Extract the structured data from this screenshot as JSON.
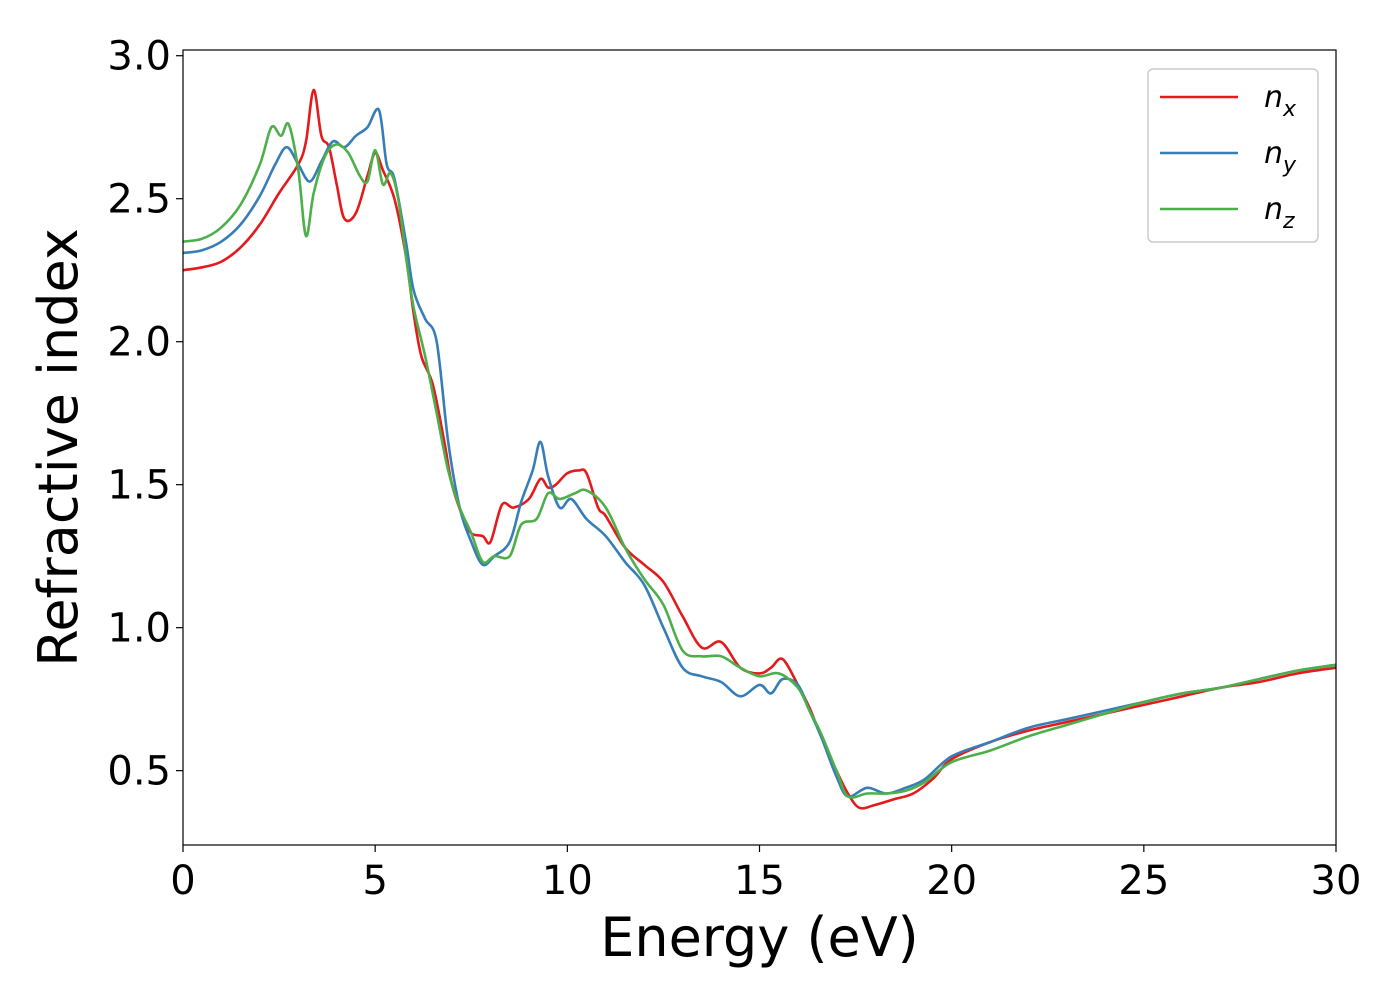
{
  "chart_data": {
    "type": "line",
    "title": "",
    "xlabel": "Energy (eV)",
    "ylabel": "Refractive index",
    "xlim": [
      0,
      30
    ],
    "ylim": [
      0.24,
      3.02
    ],
    "xticks": [
      0,
      5,
      10,
      15,
      20,
      25,
      30
    ],
    "xtick_labels": [
      "0",
      "5",
      "10",
      "15",
      "20",
      "25",
      "30"
    ],
    "yticks": [
      0.5,
      1.0,
      1.5,
      2.0,
      2.5,
      3.0
    ],
    "ytick_labels": [
      "0.5",
      "1.0",
      "1.5",
      "2.0",
      "2.5",
      "3.0"
    ],
    "grid": false,
    "legend_position": "top-right",
    "series": [
      {
        "name": "n",
        "subscript": "x",
        "color": "#e41a1c",
        "x": [
          0,
          0.5,
          1,
          1.5,
          2,
          2.5,
          3,
          3.2,
          3.4,
          3.6,
          3.8,
          4,
          4.2,
          4.5,
          4.8,
          5,
          5.2,
          5.5,
          5.8,
          6,
          6.2,
          6.5,
          6.8,
          7,
          7.3,
          7.5,
          7.8,
          8,
          8.3,
          8.6,
          9,
          9.3,
          9.5,
          9.7,
          10,
          10.3,
          10.5,
          10.8,
          11,
          11.5,
          12,
          12.5,
          13,
          13.5,
          14,
          14.5,
          15,
          15.3,
          15.6,
          16,
          16.3,
          16.6,
          17,
          17.3,
          17.6,
          18,
          18.5,
          19,
          19.5,
          20,
          21,
          22,
          23,
          24,
          25,
          26,
          27,
          28,
          29,
          30
        ],
        "y": [
          2.25,
          2.26,
          2.28,
          2.33,
          2.41,
          2.52,
          2.62,
          2.7,
          2.88,
          2.72,
          2.68,
          2.55,
          2.43,
          2.45,
          2.58,
          2.66,
          2.6,
          2.5,
          2.3,
          2.1,
          1.95,
          1.85,
          1.65,
          1.5,
          1.38,
          1.33,
          1.32,
          1.3,
          1.43,
          1.42,
          1.45,
          1.52,
          1.49,
          1.5,
          1.54,
          1.55,
          1.54,
          1.42,
          1.39,
          1.28,
          1.22,
          1.16,
          1.04,
          0.93,
          0.95,
          0.86,
          0.84,
          0.86,
          0.89,
          0.8,
          0.72,
          0.62,
          0.5,
          0.42,
          0.37,
          0.38,
          0.4,
          0.42,
          0.47,
          0.54,
          0.6,
          0.64,
          0.67,
          0.7,
          0.73,
          0.76,
          0.79,
          0.81,
          0.84,
          0.86
        ]
      },
      {
        "name": "n",
        "subscript": "y",
        "color": "#377eb8",
        "x": [
          0,
          0.5,
          1,
          1.5,
          2,
          2.4,
          2.7,
          3,
          3.3,
          3.6,
          3.9,
          4.2,
          4.5,
          4.8,
          5.1,
          5.3,
          5.5,
          5.8,
          6,
          6.3,
          6.6,
          6.9,
          7.2,
          7.5,
          7.8,
          8.1,
          8.5,
          8.8,
          9.1,
          9.3,
          9.5,
          9.8,
          10.1,
          10.5,
          11,
          11.5,
          12,
          12.5,
          13,
          13.5,
          14,
          14.5,
          15,
          15.3,
          15.6,
          16,
          16.3,
          16.6,
          17,
          17.3,
          17.8,
          18.3,
          18.8,
          19.3,
          20,
          21,
          22,
          23,
          24,
          25,
          26,
          27,
          28,
          29,
          30
        ],
        "y": [
          2.31,
          2.32,
          2.35,
          2.41,
          2.51,
          2.62,
          2.68,
          2.62,
          2.56,
          2.63,
          2.7,
          2.68,
          2.72,
          2.75,
          2.81,
          2.62,
          2.57,
          2.35,
          2.18,
          2.08,
          2.0,
          1.65,
          1.42,
          1.3,
          1.22,
          1.25,
          1.3,
          1.44,
          1.55,
          1.65,
          1.53,
          1.42,
          1.45,
          1.38,
          1.32,
          1.23,
          1.15,
          1.0,
          0.86,
          0.83,
          0.81,
          0.76,
          0.8,
          0.77,
          0.82,
          0.8,
          0.71,
          0.62,
          0.48,
          0.41,
          0.44,
          0.42,
          0.44,
          0.47,
          0.55,
          0.6,
          0.65,
          0.68,
          0.71,
          0.74,
          0.77,
          0.79,
          0.82,
          0.85,
          0.87
        ]
      },
      {
        "name": "n",
        "subscript": "z",
        "color": "#4daf4a",
        "x": [
          0,
          0.5,
          1,
          1.5,
          2,
          2.3,
          2.55,
          2.75,
          3,
          3.2,
          3.4,
          3.7,
          4,
          4.3,
          4.6,
          4.8,
          5,
          5.2,
          5.4,
          5.6,
          5.8,
          6,
          6.3,
          6.6,
          6.9,
          7.2,
          7.5,
          7.8,
          8.1,
          8.5,
          8.8,
          9.2,
          9.5,
          9.8,
          10.2,
          10.5,
          11,
          11.5,
          12,
          12.5,
          13,
          13.5,
          14,
          14.5,
          15,
          15.5,
          16,
          16.3,
          16.6,
          17,
          17.3,
          17.8,
          18.3,
          18.8,
          19.3,
          20,
          21,
          22,
          23,
          24,
          25,
          26,
          27,
          28,
          29,
          30
        ],
        "y": [
          2.35,
          2.36,
          2.4,
          2.48,
          2.62,
          2.75,
          2.72,
          2.76,
          2.6,
          2.37,
          2.52,
          2.65,
          2.69,
          2.66,
          2.58,
          2.56,
          2.67,
          2.55,
          2.59,
          2.5,
          2.3,
          2.12,
          1.95,
          1.75,
          1.55,
          1.42,
          1.33,
          1.23,
          1.25,
          1.25,
          1.36,
          1.38,
          1.47,
          1.45,
          1.47,
          1.48,
          1.42,
          1.28,
          1.17,
          1.08,
          0.92,
          0.9,
          0.9,
          0.86,
          0.83,
          0.84,
          0.79,
          0.71,
          0.63,
          0.5,
          0.41,
          0.42,
          0.42,
          0.43,
          0.46,
          0.53,
          0.57,
          0.62,
          0.66,
          0.7,
          0.74,
          0.77,
          0.79,
          0.82,
          0.85,
          0.87
        ]
      }
    ]
  }
}
